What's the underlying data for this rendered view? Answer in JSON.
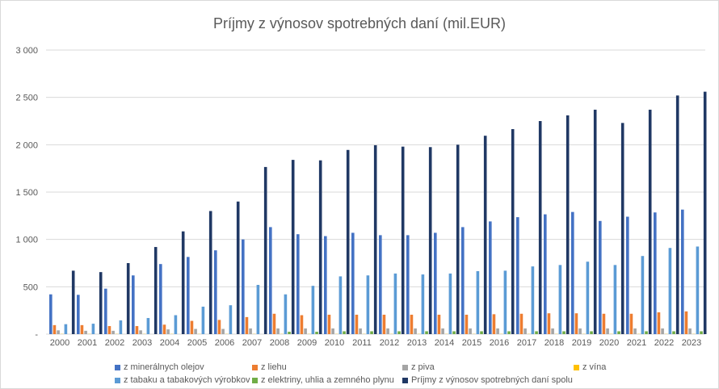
{
  "chart_data": {
    "type": "bar",
    "title": "Príjmy z výnosov spotrebných daní (mil.EUR)",
    "categories": [
      "2000",
      "2001",
      "2002",
      "2003",
      "2004",
      "2005",
      "2006",
      "2007",
      "2008",
      "2009",
      "2010",
      "2011",
      "2012",
      "2013",
      "2014",
      "2015",
      "2016",
      "2017",
      "2018",
      "2019",
      "2020",
      "2021",
      "2022",
      "2023"
    ],
    "ylim": [
      0,
      3000
    ],
    "yticks": [
      {
        "value": 0,
        "label": "-"
      },
      {
        "value": 500,
        "label": "500"
      },
      {
        "value": 1000,
        "label": "1 000"
      },
      {
        "value": 1500,
        "label": "1 500"
      },
      {
        "value": 2000,
        "label": "2 000"
      },
      {
        "value": 2500,
        "label": "2 500"
      },
      {
        "value": 3000,
        "label": "3 000"
      }
    ],
    "grid": true,
    "legend_position": "bottom",
    "series": [
      {
        "name": "z minerálnych olejov",
        "color": "#4472c4",
        "values": [
          420,
          415,
          480,
          620,
          740,
          815,
          885,
          1000,
          1130,
          1055,
          1035,
          1070,
          1045,
          1045,
          1070,
          1130,
          1190,
          1235,
          1265,
          1290,
          1195,
          1240,
          1285,
          1315
        ]
      },
      {
        "name": "z liehu",
        "color": "#ed7d31",
        "values": [
          95,
          95,
          85,
          85,
          100,
          140,
          150,
          180,
          215,
          200,
          205,
          205,
          205,
          205,
          205,
          205,
          210,
          215,
          220,
          220,
          215,
          215,
          230,
          240
        ]
      },
      {
        "name": "z piva",
        "color": "#a5a5a5",
        "values": [
          40,
          35,
          35,
          40,
          50,
          55,
          55,
          60,
          60,
          60,
          60,
          60,
          60,
          60,
          60,
          60,
          60,
          60,
          60,
          60,
          60,
          60,
          60,
          60
        ]
      },
      {
        "name": "z vína",
        "color": "#ffc000",
        "values": [
          2,
          2,
          2,
          2,
          2,
          2,
          2,
          2,
          2,
          2,
          2,
          2,
          2,
          2,
          2,
          2,
          2,
          2,
          2,
          2,
          2,
          2,
          2,
          2
        ]
      },
      {
        "name": "z tabaku a tabakových výrobkov",
        "color": "#5b9bd5",
        "values": [
          105,
          110,
          145,
          170,
          200,
          290,
          305,
          520,
          420,
          510,
          610,
          620,
          640,
          630,
          640,
          665,
          670,
          715,
          730,
          765,
          730,
          825,
          910,
          925
        ]
      },
      {
        "name": "z elektriny, uhlia a zemného plynu",
        "color": "#70ad47",
        "values": [
          0,
          0,
          0,
          0,
          0,
          0,
          0,
          0,
          25,
          25,
          30,
          30,
          30,
          30,
          30,
          30,
          30,
          30,
          30,
          30,
          30,
          30,
          30,
          30
        ]
      },
      {
        "name": "Príjmy z výnosov spotrebných daní spolu",
        "color": "#203864",
        "values": [
          670,
          655,
          750,
          920,
          1085,
          1300,
          1400,
          1765,
          1840,
          1835,
          1945,
          1995,
          1980,
          1975,
          2000,
          2095,
          2165,
          2250,
          2310,
          2370,
          2230,
          2370,
          2520,
          2560
        ]
      }
    ]
  }
}
